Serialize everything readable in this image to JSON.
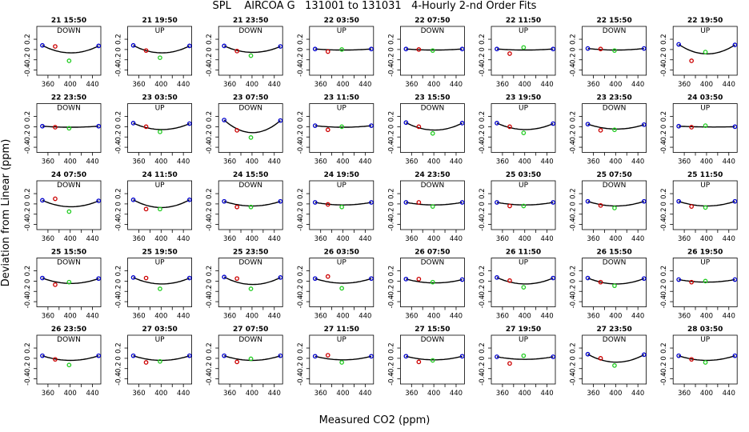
{
  "title": "SPL    AIRCOA G   131001 to 131031   4-Hourly 2-nd Order Fits",
  "xlabel": "Measured CO2 (ppm)",
  "ylabel": "Deviation from Linear (ppm)",
  "colors": {
    "fit_line": "#000000",
    "low_std": "#cc0000",
    "mid_std": "#22cc22",
    "end_std": "#0000cc"
  },
  "chart_data": {
    "type": "scatter",
    "xlim": [
      340,
      455
    ],
    "ylim": [
      -0.5,
      0.45
    ],
    "xticks": [
      360,
      400,
      440
    ],
    "xtick_labels": [
      "360",
      "400",
      "440"
    ],
    "yticks": [
      -0.4,
      -0.2,
      0,
      0.2
    ],
    "ytick_labels": [
      "-0.4",
      "-0.2",
      "0",
      "0.2"
    ],
    "standards_x": [
      350,
      373,
      398,
      451
    ],
    "panels": [
      {
        "label": "21 15:50",
        "mode": "DOWN",
        "a": -0.14,
        "y": [
          0.08,
          0.06,
          -0.22,
          0.07
        ]
      },
      {
        "label": "21 19:50",
        "mode": "UP",
        "a": -0.14,
        "y": [
          0.08,
          -0.02,
          -0.16,
          0.07
        ]
      },
      {
        "label": "21 23:50",
        "mode": "DOWN",
        "a": -0.12,
        "y": [
          0.07,
          -0.03,
          -0.12,
          0.06
        ]
      },
      {
        "label": "22 03:50",
        "mode": "UP",
        "a": -0.02,
        "y": [
          0.01,
          -0.04,
          0.0,
          0.01
        ]
      },
      {
        "label": "22 07:50",
        "mode": "DOWN",
        "a": -0.02,
        "y": [
          0.01,
          0.0,
          -0.02,
          0.01
        ]
      },
      {
        "label": "22 11:50",
        "mode": "UP",
        "a": -0.02,
        "y": [
          0.01,
          -0.08,
          0.04,
          0.01
        ]
      },
      {
        "label": "22 15:50",
        "mode": "DOWN",
        "a": -0.03,
        "y": [
          0.02,
          0.01,
          -0.02,
          0.02
        ]
      },
      {
        "label": "22 19:50",
        "mode": "UP",
        "a": -0.18,
        "y": [
          0.1,
          -0.22,
          -0.05,
          0.09
        ]
      },
      {
        "label": "22 23:50",
        "mode": "DOWN",
        "a": -0.02,
        "y": [
          0.01,
          -0.01,
          -0.03,
          0.01
        ]
      },
      {
        "label": "23 03:50",
        "mode": "UP",
        "a": -0.12,
        "y": [
          0.07,
          0.0,
          -0.1,
          0.06
        ]
      },
      {
        "label": "23 07:50",
        "mode": "DOWN",
        "a": -0.24,
        "y": [
          0.13,
          -0.07,
          -0.21,
          0.12
        ]
      },
      {
        "label": "23 11:50",
        "mode": "UP",
        "a": -0.03,
        "y": [
          0.02,
          -0.06,
          0.0,
          0.02
        ]
      },
      {
        "label": "23 15:50",
        "mode": "DOWN",
        "a": -0.14,
        "y": [
          0.08,
          0.0,
          -0.13,
          0.07
        ]
      },
      {
        "label": "23 19:50",
        "mode": "UP",
        "a": -0.12,
        "y": [
          0.07,
          0.0,
          -0.12,
          0.06
        ]
      },
      {
        "label": "23 23:50",
        "mode": "DOWN",
        "a": -0.09,
        "y": [
          0.05,
          -0.07,
          -0.06,
          0.04
        ]
      },
      {
        "label": "24 03:50",
        "mode": "UP",
        "a": -0.01,
        "y": [
          0.01,
          -0.01,
          0.02,
          0.0
        ]
      },
      {
        "label": "24 07:50",
        "mode": "DOWN",
        "a": -0.12,
        "y": [
          0.07,
          0.1,
          -0.15,
          0.06
        ]
      },
      {
        "label": "24 11:50",
        "mode": "UP",
        "a": -0.15,
        "y": [
          0.08,
          -0.1,
          -0.1,
          0.08
        ]
      },
      {
        "label": "24 15:50",
        "mode": "DOWN",
        "a": -0.09,
        "y": [
          0.05,
          -0.06,
          -0.06,
          0.05
        ]
      },
      {
        "label": "24 19:50",
        "mode": "UP",
        "a": -0.05,
        "y": [
          0.03,
          -0.01,
          -0.06,
          0.03
        ]
      },
      {
        "label": "24 23:50",
        "mode": "DOWN",
        "a": -0.05,
        "y": [
          0.03,
          0.03,
          -0.05,
          0.03
        ]
      },
      {
        "label": "25 03:50",
        "mode": "UP",
        "a": -0.05,
        "y": [
          0.03,
          -0.04,
          -0.04,
          0.03
        ]
      },
      {
        "label": "25 07:50",
        "mode": "DOWN",
        "a": -0.09,
        "y": [
          0.05,
          -0.03,
          -0.08,
          0.05
        ]
      },
      {
        "label": "25 11:50",
        "mode": "UP",
        "a": -0.09,
        "y": [
          0.05,
          -0.05,
          -0.07,
          0.05
        ]
      },
      {
        "label": "25 15:50",
        "mode": "DOWN",
        "a": -0.1,
        "y": [
          0.06,
          -0.07,
          -0.02,
          0.05
        ]
      },
      {
        "label": "25 19:50",
        "mode": "UP",
        "a": -0.12,
        "y": [
          0.07,
          0.06,
          -0.15,
          0.06
        ]
      },
      {
        "label": "25 23:50",
        "mode": "DOWN",
        "a": -0.14,
        "y": [
          0.08,
          0.05,
          -0.15,
          0.07
        ]
      },
      {
        "label": "26 03:50",
        "mode": "UP",
        "a": -0.09,
        "y": [
          0.05,
          0.09,
          -0.14,
          0.05
        ]
      },
      {
        "label": "26 07:50",
        "mode": "DOWN",
        "a": -0.07,
        "y": [
          0.04,
          0.04,
          -0.02,
          0.03
        ]
      },
      {
        "label": "26 11:50",
        "mode": "UP",
        "a": -0.12,
        "y": [
          0.07,
          0.01,
          -0.12,
          0.06
        ]
      },
      {
        "label": "26 15:50",
        "mode": "DOWN",
        "a": -0.11,
        "y": [
          0.06,
          -0.02,
          -0.09,
          0.05
        ]
      },
      {
        "label": "26 19:50",
        "mode": "UP",
        "a": -0.05,
        "y": [
          0.03,
          -0.02,
          0.0,
          0.03
        ]
      },
      {
        "label": "26 23:50",
        "mode": "DOWN",
        "a": -0.09,
        "y": [
          0.05,
          -0.02,
          -0.13,
          0.05
        ]
      },
      {
        "label": "27 03:50",
        "mode": "UP",
        "a": -0.09,
        "y": [
          0.05,
          -0.08,
          -0.06,
          0.05
        ]
      },
      {
        "label": "27 07:50",
        "mode": "DOWN",
        "a": -0.09,
        "y": [
          0.05,
          -0.07,
          -0.01,
          0.05
        ]
      },
      {
        "label": "27 11:50",
        "mode": "UP",
        "a": -0.07,
        "y": [
          0.04,
          0.06,
          -0.08,
          0.04
        ]
      },
      {
        "label": "27 15:50",
        "mode": "DOWN",
        "a": -0.07,
        "y": [
          0.04,
          -0.07,
          -0.04,
          0.04
        ]
      },
      {
        "label": "27 19:50",
        "mode": "UP",
        "a": -0.05,
        "y": [
          0.03,
          -0.1,
          0.05,
          0.03
        ]
      },
      {
        "label": "27 23:50",
        "mode": "DOWN",
        "a": -0.15,
        "y": [
          0.08,
          0.0,
          -0.14,
          0.07
        ]
      },
      {
        "label": "28 03:50",
        "mode": "UP",
        "a": -0.09,
        "y": [
          0.05,
          -0.02,
          -0.08,
          0.05
        ]
      }
    ]
  }
}
